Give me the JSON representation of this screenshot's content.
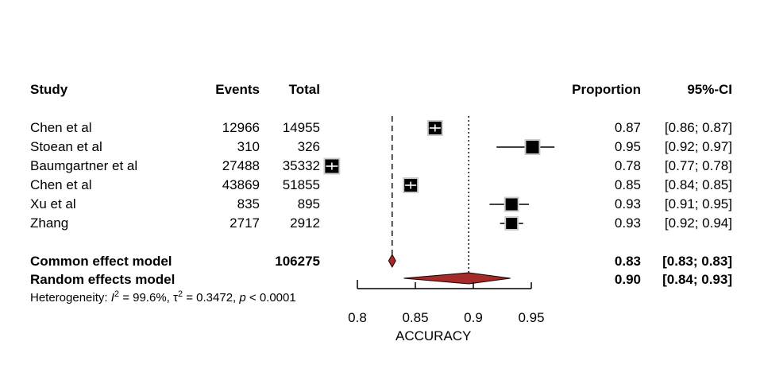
{
  "table": {
    "headers": {
      "study": "Study",
      "events": "Events",
      "total": "Total",
      "proportion": "Proportion",
      "ci": "95%-CI"
    },
    "rows": [
      {
        "label": "Chen et al",
        "events": "12966",
        "total": "14955",
        "proportion": "0.87",
        "ci": "[0.86; 0.87]"
      },
      {
        "label": "Stoean et al",
        "events": "310",
        "total": "326",
        "proportion": "0.95",
        "ci": "[0.92; 0.97]"
      },
      {
        "label": "Baumgartner et al",
        "events": "27488",
        "total": "35332",
        "proportion": "0.78",
        "ci": "[0.77; 0.78]"
      },
      {
        "label": "Chen et al",
        "events": "43869",
        "total": "51855",
        "proportion": "0.85",
        "ci": "[0.84; 0.85]"
      },
      {
        "label": "Xu et al",
        "events": "835",
        "total": "895",
        "proportion": "0.93",
        "ci": "[0.91; 0.95]"
      },
      {
        "label": "Zhang",
        "events": "2717",
        "total": "2912",
        "proportion": "0.93",
        "ci": "[0.92; 0.94]"
      }
    ],
    "common": {
      "label": "Common effect model",
      "total": "106275",
      "proportion": "0.83",
      "ci": "[0.83; 0.83]"
    },
    "random": {
      "label": "Random effects model",
      "proportion": "0.90",
      "ci": "[0.84; 0.93]"
    },
    "heterogeneity": {
      "prefix": "Heterogeneity: ",
      "i2_symbol": "I",
      "i2_sup": "2",
      "i2_value": " = 99.6%, ",
      "tau_symbol": "τ",
      "tau_sup": "2",
      "tau_value": " = 0.3472, ",
      "p_symbol": "p",
      "p_value": " < 0.0001"
    }
  },
  "chart_data": {
    "type": "forest",
    "xlabel": "ACCURACY",
    "xlim": [
      0.8,
      0.95
    ],
    "x_ticks": [
      0.8,
      0.85,
      0.9,
      0.95
    ],
    "x_tick_labels": [
      "0.8",
      "0.85",
      "0.9",
      "0.95"
    ],
    "studies": [
      {
        "label": "Chen et al",
        "point": 0.867,
        "ci_lo": 0.861,
        "ci_hi": 0.872,
        "marker_size": 18
      },
      {
        "label": "Stoean et al",
        "point": 0.951,
        "ci_lo": 0.92,
        "ci_hi": 0.97,
        "marker_size": 18
      },
      {
        "label": "Baumgartner et al",
        "point": 0.778,
        "ci_lo": 0.774,
        "ci_hi": 0.782,
        "marker_size": 19
      },
      {
        "label": "Chen et al",
        "point": 0.846,
        "ci_lo": 0.843,
        "ci_hi": 0.849,
        "marker_size": 18
      },
      {
        "label": "Xu et al",
        "point": 0.933,
        "ci_lo": 0.914,
        "ci_hi": 0.948,
        "marker_size": 17
      },
      {
        "label": "Zhang",
        "point": 0.933,
        "ci_lo": 0.923,
        "ci_hi": 0.943,
        "marker_size": 16
      }
    ],
    "common_effect": {
      "estimate": 0.83,
      "ci_lo": 0.827,
      "ci_hi": 0.833
    },
    "random_effects": {
      "estimate": 0.896,
      "ci_lo": 0.84,
      "ci_hi": 0.932
    },
    "reference_lines": [
      {
        "style": "dashed",
        "value": 0.83
      },
      {
        "style": "dotted",
        "value": 0.896
      }
    ],
    "colors": {
      "diamond_fill": "#A52A2A",
      "diamond_stroke": "#1A0000",
      "square_fill": "#000000",
      "square_border": "#CCCCCC",
      "line": "#000000"
    }
  }
}
